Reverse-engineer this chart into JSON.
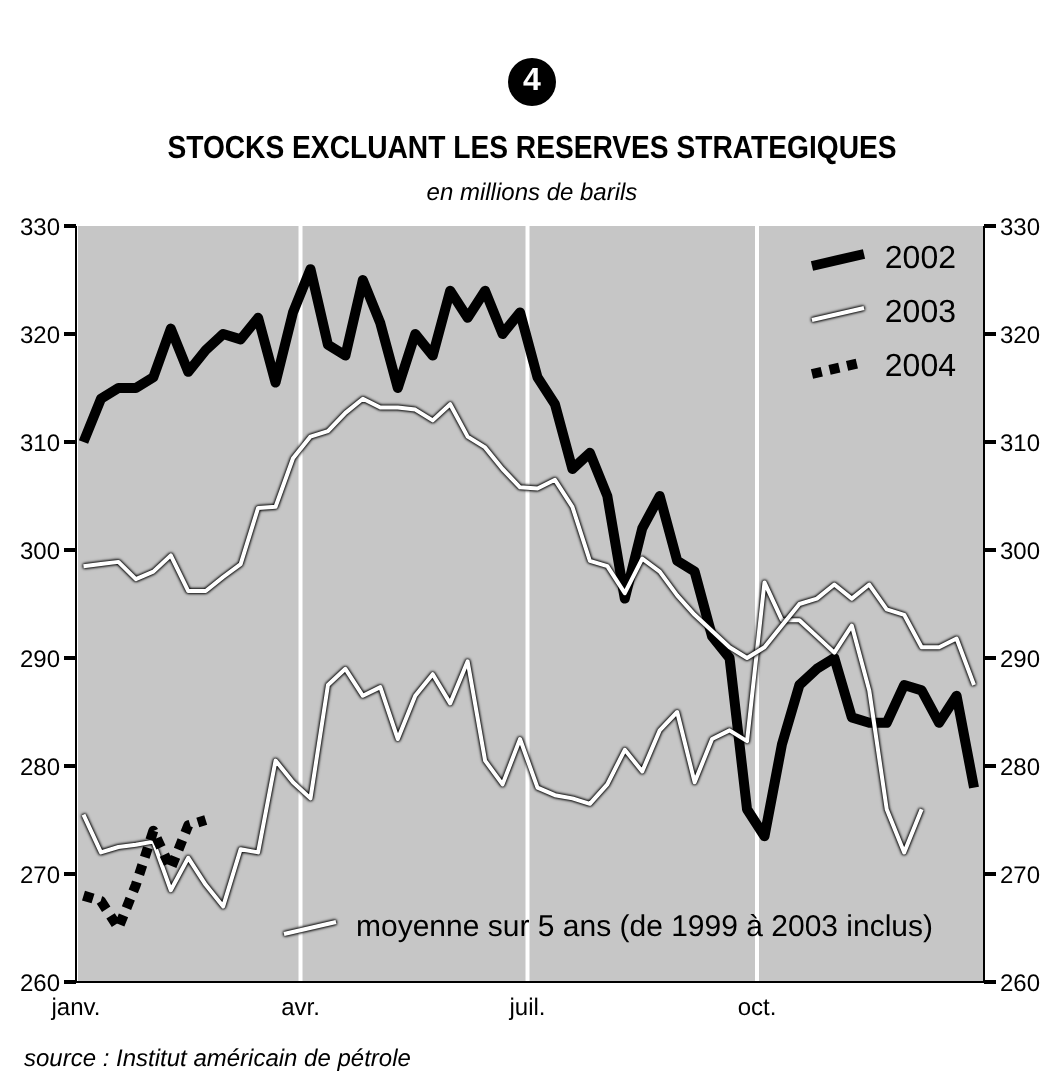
{
  "chart_data": {
    "type": "line",
    "title": "STOCKS EXCLUANT LES RESERVES STRATEGIQUES",
    "subtitle": "en millions de barils",
    "annotations": [
      "4",
      "source : Institut américain de pétrole"
    ],
    "x": [
      "--01-04",
      "--01-11",
      "--01-18",
      "--01-25",
      "--02-01",
      "--02-08",
      "--02-15",
      "--02-22",
      "--03-01",
      "--03-08",
      "--03-15",
      "--03-22",
      "--03-29",
      "--04-05",
      "--04-12",
      "--04-19",
      "--04-26",
      "--05-03",
      "--05-10",
      "--05-17",
      "--05-24",
      "--05-31",
      "--06-07",
      "--06-14",
      "--06-21",
      "--06-28",
      "--07-05",
      "--07-12",
      "--07-19",
      "--07-26",
      "--08-02",
      "--08-09",
      "--08-16",
      "--08-23",
      "--08-30",
      "--09-06",
      "--09-13",
      "--09-20",
      "--09-27",
      "--10-04",
      "--10-11",
      "--10-18",
      "--10-25",
      "--11-01",
      "--11-08",
      "--11-15",
      "--11-22",
      "--11-29",
      "--12-06",
      "--12-13",
      "--12-20",
      "--12-27"
    ],
    "series": [
      {
        "name": "2002",
        "color": "#000000",
        "line_style": "solid",
        "values": [
          310,
          314,
          315,
          315,
          316,
          320.5,
          316.5,
          318.5,
          320,
          319.5,
          321.5,
          315.5,
          322,
          326,
          319,
          318,
          325,
          321,
          315,
          320,
          318,
          324,
          321.5,
          324,
          320,
          322,
          316,
          313.5,
          307.5,
          309,
          305,
          295.5,
          302,
          305,
          299,
          298,
          292,
          290,
          276,
          273.5,
          282,
          287.5,
          289,
          290,
          284.5,
          284,
          284,
          287.5,
          287,
          284,
          286.5,
          278
        ]
      },
      {
        "name": "2003",
        "color": "#ffffff",
        "line_style": "solid",
        "values": [
          275.5,
          272,
          272.5,
          272.7,
          273,
          268.5,
          271.5,
          269,
          267,
          272.3,
          272,
          280.5,
          278.5,
          277,
          287.5,
          289,
          286.5,
          287.3,
          282.5,
          286.5,
          288.5,
          285.8,
          289.7,
          280.5,
          278.3,
          282.5,
          278,
          277.3,
          277,
          276.5,
          278.3,
          281.5,
          279.5,
          283.3,
          285,
          278.5,
          282.5,
          283.3,
          282.3,
          297,
          293.5,
          293.5,
          292,
          290.5,
          293,
          287,
          276,
          272,
          276,
          null,
          null,
          null
        ]
      },
      {
        "name": "2004",
        "color": "#000000",
        "line_style": "dashed",
        "values": [
          268,
          267.5,
          265,
          269,
          274,
          270.5,
          274.5,
          275,
          null,
          null,
          null,
          null,
          null,
          null,
          null,
          null,
          null,
          null,
          null,
          null,
          null,
          null,
          null,
          null,
          null,
          null,
          null,
          null,
          null,
          null,
          null,
          null,
          null,
          null,
          null,
          null,
          null,
          null,
          null,
          null,
          null,
          null,
          null,
          null,
          null,
          null,
          null,
          null,
          null,
          null,
          null,
          null
        ]
      },
      {
        "name": "moyenne sur 5 ans (de 1999 à 2003 inclus)",
        "color": "#ffffff",
        "line_style": "solid",
        "values": [
          298.5,
          298.7,
          298.9,
          297.3,
          298,
          299.5,
          296.2,
          296.2,
          297.5,
          298.7,
          303.9,
          304,
          308.5,
          310.5,
          311,
          312.7,
          314,
          313.2,
          313.2,
          313,
          312,
          313.5,
          310.5,
          309.5,
          307.5,
          305.8,
          305.7,
          306.5,
          304,
          299,
          298.5,
          296,
          299.2,
          298,
          295.8,
          294,
          292.5,
          291,
          290,
          291,
          293,
          295,
          295.5,
          296.8,
          295.5,
          296.8,
          294.5,
          294,
          291,
          291,
          291.8,
          287.5
        ]
      }
    ],
    "xlim": [
      "--01-01",
      "--12-31"
    ],
    "xticks": [
      {
        "value": "--01-01",
        "label": "janv."
      },
      {
        "value": "--04-01",
        "label": "avr."
      },
      {
        "value": "--07-01",
        "label": "juil."
      },
      {
        "value": "--10-01",
        "label": "oct."
      }
    ],
    "ylim": [
      260,
      330
    ],
    "yticks": [
      260,
      270,
      280,
      290,
      300,
      310,
      320,
      330
    ],
    "y2lim": [
      260,
      330
    ],
    "y2ticks": [
      260,
      270,
      280,
      290,
      300,
      310,
      320,
      330
    ],
    "grid": true,
    "legend": "top right",
    "marker": "none"
  }
}
